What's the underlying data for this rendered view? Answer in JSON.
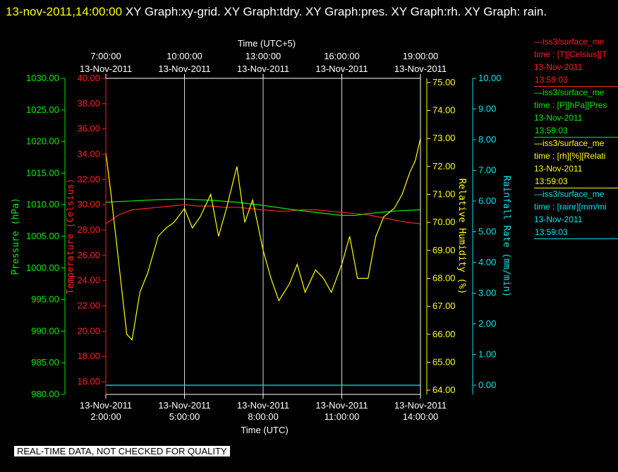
{
  "header": {
    "timestamp": "13-nov-2011,14:00:00",
    "rest": "  XY Graph:xy-grid.  XY Graph:tdry.  XY Graph:pres.  XY Graph:rh.  XY Graph: rain."
  },
  "footer": {
    "note": "REAL-TIME DATA, NOT CHECKED FOR QUALITY"
  },
  "legend": [
    {
      "title": "—iss3/surface_me",
      "line1": "time : [T][Celsius][T",
      "date": "13-Nov-2011",
      "time": "13:59:03",
      "color": "#ff2020"
    },
    {
      "title": "—iss3/surface_me",
      "line1": "time : [P][hPa][Pres",
      "date": "13-Nov-2011",
      "time": "13:59:03",
      "color": "#00ee00"
    },
    {
      "title": "—iss3/surface_me",
      "line1": "time : [rh][%][Relati",
      "date": "13-Nov-2011",
      "time": "13:59:03",
      "color": "#ffff00"
    },
    {
      "title": "—iss3/surface_me",
      "line1": "time : [rainr][mm/mi",
      "date": "13-Nov-2011",
      "time": "13:59:03",
      "color": "#00e5ee"
    }
  ],
  "chart_data": {
    "type": "line",
    "top_axis": {
      "label": "Time (UTC+5)",
      "ticks": [
        {
          "time": "7:00:00",
          "date": "13-Nov-2011"
        },
        {
          "time": "10:00:00",
          "date": "13-Nov-2011"
        },
        {
          "time": "13:00:00",
          "date": "13-Nov-2011"
        },
        {
          "time": "16:00:00",
          "date": "13-Nov-2011"
        },
        {
          "time": "19:00:00",
          "date": "13-Nov-2011"
        }
      ]
    },
    "bottom_axis": {
      "label": "Time (UTC)",
      "ticks": [
        {
          "time": "2:00:00",
          "date": "13-Nov-2011"
        },
        {
          "time": "5:00:00",
          "date": "13-Nov-2011"
        },
        {
          "time": "8:00:00",
          "date": "13-Nov-2011"
        },
        {
          "time": "11:00:00",
          "date": "13-Nov-2011"
        },
        {
          "time": "14:00:00",
          "date": "13-Nov-2011"
        }
      ],
      "range_hours_utc": [
        2,
        14
      ]
    },
    "axes": {
      "pressure": {
        "label": "Pressure (hPa)",
        "range": [
          980,
          1030
        ],
        "ticks": [
          "980.00",
          "985.00",
          "990.00",
          "995.00",
          "1000.00",
          "1005.00",
          "1010.00",
          "1015.00",
          "1020.00",
          "1025.00",
          "1030.00"
        ],
        "color": "#00ee00"
      },
      "temperature": {
        "label": "Temperature (Celsius)",
        "range": [
          15,
          40
        ],
        "ticks": [
          "16.00",
          "18.00",
          "20.00",
          "22.00",
          "24.00",
          "26.00",
          "28.00",
          "30.00",
          "32.00",
          "34.00",
          "36.00",
          "38.00",
          "40.00"
        ],
        "color": "#ff2020"
      },
      "humidity": {
        "label": "Relative Humidity (%)",
        "range": [
          63.85,
          75.15
        ],
        "ticks": [
          "64.00",
          "65.00",
          "66.00",
          "67.00",
          "68.00",
          "69.00",
          "70.00",
          "71.00",
          "72.00",
          "73.00",
          "74.00",
          "75.00"
        ],
        "color": "#ffff00"
      },
      "rain": {
        "label": "Rainfall Rate (mm/min)",
        "range": [
          -0.3,
          10
        ],
        "ticks": [
          "0.00",
          "1.00",
          "2.00",
          "3.00",
          "4.00",
          "5.00",
          "6.00",
          "7.00",
          "8.00",
          "9.00",
          "10.00"
        ],
        "color": "#00e5ee"
      }
    },
    "series": [
      {
        "name": "Temperature",
        "axis": "temperature",
        "x": [
          2.0,
          2.5,
          3.0,
          3.5,
          4.0,
          4.5,
          5.0,
          5.5,
          6.0,
          6.5,
          7.0,
          7.5,
          8.0,
          8.5,
          9.0,
          9.5,
          10.0,
          10.5,
          11.0,
          11.5,
          12.0,
          12.5,
          13.0,
          13.5,
          14.0
        ],
        "y": [
          28.5,
          29.2,
          29.6,
          29.7,
          29.8,
          29.9,
          30.0,
          29.9,
          29.9,
          29.8,
          29.8,
          29.7,
          29.6,
          29.5,
          29.5,
          29.6,
          29.6,
          29.5,
          29.4,
          29.3,
          29.2,
          29.0,
          28.8,
          28.6,
          28.5
        ]
      },
      {
        "name": "Pressure",
        "axis": "pressure",
        "x": [
          2.0,
          3.0,
          4.0,
          5.0,
          6.0,
          7.0,
          8.0,
          9.0,
          10.0,
          11.0,
          11.5,
          12.0,
          12.5,
          13.0,
          14.0
        ],
        "y": [
          1010.4,
          1010.6,
          1010.8,
          1010.9,
          1010.7,
          1010.4,
          1009.9,
          1009.3,
          1008.8,
          1008.3,
          1008.3,
          1008.6,
          1008.8,
          1009.0,
          1009.2
        ]
      },
      {
        "name": "Relative Humidity",
        "axis": "humidity",
        "x": [
          2.0,
          2.2,
          2.5,
          2.8,
          3.0,
          3.3,
          3.6,
          4.0,
          4.3,
          4.6,
          5.0,
          5.3,
          5.6,
          6.0,
          6.3,
          6.6,
          7.0,
          7.3,
          7.6,
          8.0,
          8.3,
          8.6,
          9.0,
          9.3,
          9.6,
          10.0,
          10.3,
          10.6,
          11.0,
          11.3,
          11.6,
          12.0,
          12.3,
          12.6,
          13.0,
          13.3,
          13.6,
          13.8,
          14.0
        ],
        "y": [
          72.5,
          71.0,
          68.5,
          66.0,
          65.8,
          67.5,
          68.2,
          69.5,
          69.8,
          70.0,
          70.5,
          69.8,
          70.2,
          71.0,
          69.5,
          70.5,
          72.0,
          70.0,
          70.8,
          69.0,
          68.0,
          67.2,
          67.8,
          68.5,
          67.5,
          68.3,
          68.0,
          67.5,
          68.5,
          69.5,
          68.0,
          68.0,
          69.5,
          70.2,
          70.5,
          71.0,
          71.8,
          72.2,
          73.0
        ]
      },
      {
        "name": "Rainfall Rate",
        "axis": "rain",
        "x": [
          2.0,
          14.0
        ],
        "y": [
          0.0,
          0.0
        ]
      }
    ]
  }
}
